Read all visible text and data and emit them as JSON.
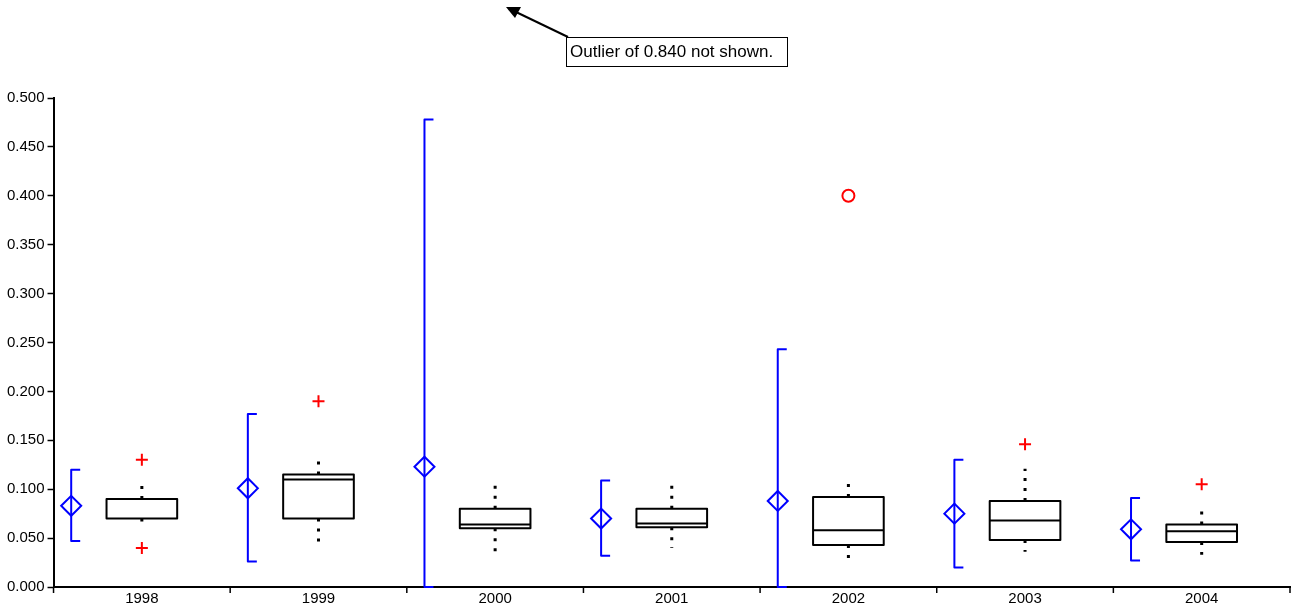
{
  "chart_data": {
    "type": "box",
    "categories": [
      "1998",
      "1999",
      "2000",
      "2001",
      "2002",
      "2003",
      "2004"
    ],
    "ylim": [
      0,
      0.5
    ],
    "yticks": [
      {
        "value": 0,
        "label": "0.000"
      },
      {
        "value": 0.05,
        "label": "0.050"
      },
      {
        "value": 0.1,
        "label": "0.100"
      },
      {
        "value": 0.15,
        "label": "0.150"
      },
      {
        "value": 0.2,
        "label": "0.200"
      },
      {
        "value": 0.25,
        "label": "0.250"
      },
      {
        "value": 0.3,
        "label": "0.300"
      },
      {
        "value": 0.35,
        "label": "0.350"
      },
      {
        "value": 0.4,
        "label": "0.400"
      },
      {
        "value": 0.45,
        "label": "0.450"
      },
      {
        "value": 0.5,
        "label": "0.500"
      }
    ],
    "grid": false,
    "legend": false,
    "annotations": [
      "Outlier of 0.840 not shown."
    ],
    "series": [
      {
        "type": "scatter",
        "color": "#0000ff",
        "marker": "diamond",
        "values": [
          0.083,
          0.101,
          0.123,
          0.07,
          0.088,
          0.075,
          0.059
        ],
        "errors": [
          [
            0.047,
            0.12
          ],
          [
            0.026,
            0.177
          ],
          [
            0,
            0.478
          ],
          [
            0.032,
            0.109
          ],
          [
            0,
            0.243
          ],
          [
            0.02,
            0.13
          ],
          [
            0.027,
            0.091
          ]
        ]
      },
      {
        "color": "#000000",
        "boxes": [
          {
            "low": 0.061,
            "q1": 0.07,
            "median": 0.09,
            "q3": 0.09,
            "high": 0.109,
            "outliers": [
              0.13,
              0.04
            ]
          },
          {
            "low": 0.041,
            "q1": 0.07,
            "median": 0.11,
            "q3": 0.115,
            "high": 0.13,
            "outliers": [
              0.19
            ]
          },
          {
            "low": 0.03,
            "q1": 0.06,
            "median": 0.064,
            "q3": 0.08,
            "high": 0.11
          },
          {
            "low": 0.04,
            "q1": 0.061,
            "median": 0.065,
            "q3": 0.08,
            "high": 0.11
          },
          {
            "low": 0.025,
            "q1": 0.043,
            "median": 0.058,
            "q3": 0.092,
            "high": 0.11
          },
          {
            "low": 0.036,
            "q1": 0.048,
            "median": 0.068,
            "q3": 0.088,
            "high": 0.121,
            "outliers": [
              0.146
            ]
          },
          {
            "low": 0.033,
            "q1": 0.046,
            "median": 0.057,
            "q3": 0.064,
            "high": 0.081,
            "outliers": [
              0.105
            ]
          }
        ]
      },
      {
        "type": "scatter",
        "color": "#ff0000",
        "marker": "circle",
        "values": [
          null,
          null,
          null,
          null,
          0.4,
          null,
          null
        ]
      }
    ]
  }
}
